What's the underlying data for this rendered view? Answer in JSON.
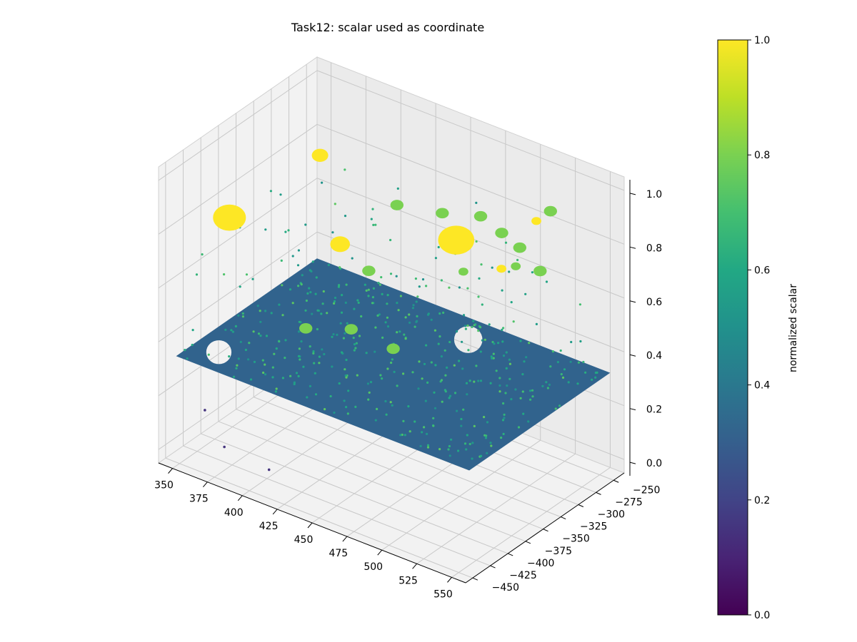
{
  "chart_data": {
    "type": "scatter",
    "projection": "3d",
    "title": "Task12: scalar used as coordinate",
    "xlabel": "",
    "ylabel": "",
    "zlabel": "",
    "xlim": [
      340,
      560
    ],
    "ylim": [
      -460,
      -235
    ],
    "zlim": [
      -0.05,
      1.05
    ],
    "x_ticks": [
      350,
      375,
      400,
      425,
      450,
      475,
      500,
      525,
      550
    ],
    "y_ticks": [
      -250,
      -275,
      -300,
      -325,
      -350,
      -375,
      -400,
      -425,
      -450
    ],
    "z_ticks": [
      "0.0",
      "0.2",
      "0.4",
      "0.6",
      "0.8",
      "1.0"
    ],
    "grid": true,
    "colormap": "viridis",
    "colorbar": {
      "label": "normalized scalar",
      "range": [
        0,
        1
      ],
      "ticks": [
        "0.0",
        "0.2",
        "0.4",
        "0.6",
        "0.8",
        "1.0"
      ]
    },
    "plate": {
      "scalar": 0.33,
      "color": "#31638d",
      "x_range": [
        345,
        555
      ],
      "y_range": [
        -445,
        -245
      ],
      "holes": [
        {
          "x": 362,
          "y": -418,
          "r": 8
        },
        {
          "x": 468,
          "y": -274,
          "r": 9
        }
      ]
    },
    "blobs": [
      {
        "x": 358,
        "y": -395,
        "z": 0.78,
        "r": 10,
        "scalar": 1.0
      },
      {
        "x": 385,
        "y": -320,
        "z": 0.93,
        "r": 5,
        "scalar": 1.0
      },
      {
        "x": 412,
        "y": -345,
        "z": 0.7,
        "r": 6,
        "scalar": 1.0
      },
      {
        "x": 475,
        "y": -305,
        "z": 0.77,
        "r": 11,
        "scalar": 1.0
      },
      {
        "x": 540,
        "y": -320,
        "z": 1.0,
        "r": 3,
        "scalar": 1.0
      },
      {
        "x": 520,
        "y": -330,
        "z": 0.8,
        "r": 3,
        "scalar": 1.0
      },
      {
        "x": 420,
        "y": -345,
        "z": 0.4,
        "r": 4,
        "scalar": 0.8
      },
      {
        "x": 425,
        "y": -330,
        "z": 0.6,
        "r": 4,
        "scalar": 0.8
      },
      {
        "x": 445,
        "y": -335,
        "z": 0.36,
        "r": 4,
        "scalar": 0.8
      },
      {
        "x": 430,
        "y": -300,
        "z": 0.8,
        "r": 4,
        "scalar": 0.8
      },
      {
        "x": 465,
        "y": -305,
        "z": 0.85,
        "r": 4,
        "scalar": 0.8
      },
      {
        "x": 490,
        "y": -300,
        "z": 0.88,
        "r": 4,
        "scalar": 0.8
      },
      {
        "x": 500,
        "y": -290,
        "z": 0.82,
        "r": 4,
        "scalar": 0.8
      },
      {
        "x": 518,
        "y": -300,
        "z": 0.82,
        "r": 4,
        "scalar": 0.8
      },
      {
        "x": 525,
        "y": -285,
        "z": 0.72,
        "r": 4,
        "scalar": 0.8
      },
      {
        "x": 540,
        "y": -300,
        "z": 1.0,
        "r": 4,
        "scalar": 0.8
      },
      {
        "x": 500,
        "y": -270,
        "z": 0.66,
        "r": 3,
        "scalar": 0.8
      },
      {
        "x": 395,
        "y": -360,
        "z": 0.38,
        "r": 4,
        "scalar": 0.8
      },
      {
        "x": 460,
        "y": -265,
        "z": 0.55,
        "r": 3,
        "scalar": 0.8
      }
    ],
    "sparse_points": {
      "count": 450,
      "scalar_range": [
        0.5,
        0.75
      ],
      "z_range": [
        0.05,
        0.75
      ],
      "outliers": [
        {
          "x": 372,
          "y": -430,
          "z": 0.02,
          "scalar": 0.15
        },
        {
          "x": 353,
          "y": -420,
          "z": 0.1,
          "scalar": 0.15
        },
        {
          "x": 404,
          "y": -430,
          "z": 0.0,
          "scalar": 0.15
        }
      ]
    }
  }
}
